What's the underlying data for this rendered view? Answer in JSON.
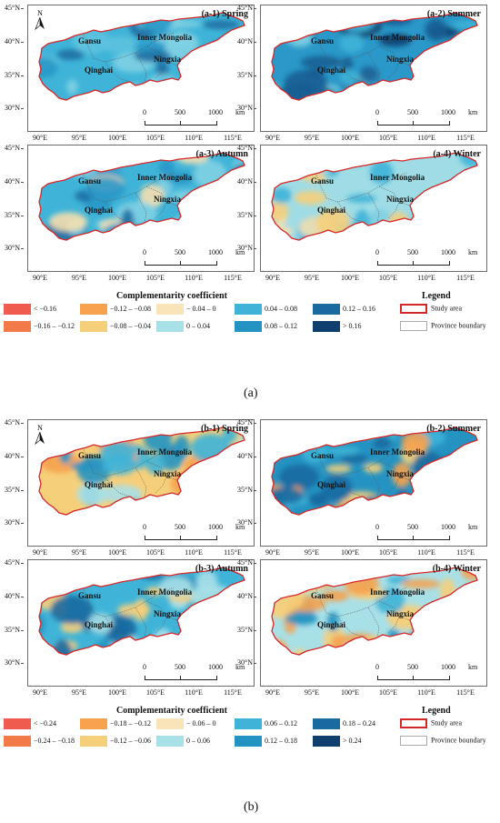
{
  "figure_a": {
    "label": "(a)",
    "panels": [
      {
        "id": "a1",
        "title": "(a-1)  Spring",
        "has_north": true,
        "palette": [
          "#3fb4d8",
          "#7fd0e3",
          "#2a98c8",
          "#5cc2de",
          "#1d6fa3"
        ]
      },
      {
        "id": "a2",
        "title": "(a-2)  Summer",
        "has_north": false,
        "palette": [
          "#2a98c8",
          "#1a5e93",
          "#3fb4d8",
          "#7fd0e3",
          "#0f3f6e"
        ]
      },
      {
        "id": "a3",
        "title": "(a-3)  Autumn",
        "has_north": false,
        "palette": [
          "#3fb4d8",
          "#2a98c8",
          "#7fd0e3",
          "#1d6fa3",
          "#f6e0b0"
        ]
      },
      {
        "id": "a4",
        "title": "(a-4)  Winter",
        "has_north": false,
        "palette": [
          "#9fdce6",
          "#f6e0b0",
          "#3fb4d8",
          "#f6cf7a",
          "#7fd0e3"
        ]
      }
    ],
    "legend": {
      "title": "Complementarity coefficient",
      "items": [
        {
          "label": "< −0.16",
          "color": "#ef5b4c"
        },
        {
          "label": "−0.16 – −0.12",
          "color": "#f27a48"
        },
        {
          "label": "−0.12 – −0.08",
          "color": "#f6a24e"
        },
        {
          "label": "−0.08 – −0.04",
          "color": "#f6cf7a"
        },
        {
          "label": "− 0.04 – 0",
          "color": "#f9e3b8"
        },
        {
          "label": "0 – 0.04",
          "color": "#a8e0e8"
        },
        {
          "label": "0.04 – 0.08",
          "color": "#3fb4d8"
        },
        {
          "label": "0.08 – 0.12",
          "color": "#2593c2"
        },
        {
          "label": "0.12 – 0.16",
          "color": "#1a6aa0"
        },
        {
          "label": "> 0.16",
          "color": "#0f3f6e"
        }
      ]
    }
  },
  "figure_b": {
    "label": "(b)",
    "panels": [
      {
        "id": "b1",
        "title": "(b-1)  Spring",
        "has_north": true,
        "palette": [
          "#f6cf7a",
          "#a8e0e8",
          "#3fb4d8",
          "#f6a24e",
          "#2593c2"
        ]
      },
      {
        "id": "b2",
        "title": "(b-2)  Summer",
        "has_north": false,
        "palette": [
          "#2593c2",
          "#f6a24e",
          "#3fb4d8",
          "#1a6aa0",
          "#f6cf7a"
        ]
      },
      {
        "id": "b3",
        "title": "(b-3)  Autumn",
        "has_north": false,
        "palette": [
          "#3fb4d8",
          "#f6cf7a",
          "#2593c2",
          "#a8e0e8",
          "#1a6aa0"
        ]
      },
      {
        "id": "b4",
        "title": "(b-4)  Winter",
        "has_north": false,
        "palette": [
          "#a8e0e8",
          "#f6cf7a",
          "#3fb4d8",
          "#f6a24e",
          "#2593c2"
        ]
      }
    ],
    "legend": {
      "title": "Complementarity coefficient",
      "items": [
        {
          "label": "< −0.24",
          "color": "#ef5b4c"
        },
        {
          "label": "−0.24 – −0.18",
          "color": "#f27a48"
        },
        {
          "label": "−0.18 – −0.12",
          "color": "#f6a24e"
        },
        {
          "label": "−0.12 – −0.06",
          "color": "#f6cf7a"
        },
        {
          "label": "− 0.06 – 0",
          "color": "#f9e3b8"
        },
        {
          "label": "0 – 0.06",
          "color": "#a8e0e8"
        },
        {
          "label": "0.06 – 0.12",
          "color": "#3fb4d8"
        },
        {
          "label": "0.12 – 0.18",
          "color": "#2593c2"
        },
        {
          "label": "0.18 – 0.24",
          "color": "#1a6aa0"
        },
        {
          "label": "> 0.24",
          "color": "#0f3f6e"
        }
      ]
    }
  },
  "map_labels": {
    "gansu": "Gansu",
    "inner_mongolia": "Inner Mongolia",
    "ningxia": "Ningxia",
    "qinghai": "Qinghai"
  },
  "north": "N",
  "scale": {
    "ticks": [
      "0",
      "500",
      "1000"
    ],
    "unit": "km"
  },
  "latitudes": [
    "45°N",
    "40°N",
    "35°N",
    "30°N"
  ],
  "longitudes": [
    "90°E",
    "95°E",
    "100°E",
    "105°E",
    "110°E",
    "115°E"
  ],
  "map_legend": {
    "title": "Legend",
    "study_area": "Study area",
    "province_boundary": "Province boundary",
    "study_area_color": "#d62728",
    "province_color": "#aaaaaa"
  }
}
